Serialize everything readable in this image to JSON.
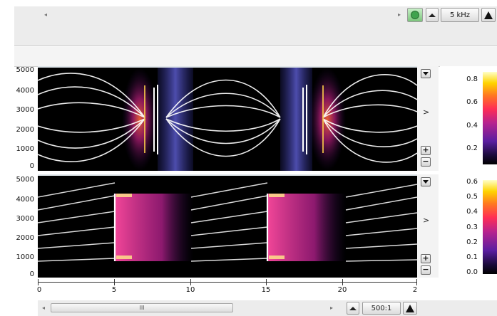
{
  "toolbar": {
    "frequency_label": "5 kHz",
    "icons": [
      "left-arrow-icon",
      "right-arrow-icon",
      "green-globe-icon",
      "mountain-icon",
      "triangle-up-icon"
    ]
  },
  "panel1": {
    "y_ticks": [
      "5000",
      "4000",
      "3000",
      "2000",
      "1000",
      "0"
    ],
    "colorbar_ticks": [
      "0.8",
      "0.6",
      "0.4",
      "0.2"
    ],
    "chevron": ">",
    "plus": "+",
    "minus": "−"
  },
  "panel2": {
    "y_ticks": [
      "5000",
      "4000",
      "3000",
      "2000",
      "1000",
      "0"
    ],
    "colorbar_ticks": [
      "0.6",
      "0.5",
      "0.4",
      "0.3",
      "0.2",
      "0.1",
      "0.0"
    ],
    "chevron": ">",
    "plus": "+",
    "minus": "−"
  },
  "xaxis": {
    "labels": [
      "0",
      "5",
      "10",
      "15",
      "20",
      "2"
    ]
  },
  "bottom": {
    "scroll_grip": "III",
    "zoom_ratio": "500:1"
  },
  "colors": {
    "panel_bg": "#000000",
    "colormap": [
      "#000000",
      "#5a1ea0",
      "#b7238e",
      "#ff2d55",
      "#ff7a1f",
      "#ffd400",
      "#ffffc8"
    ]
  }
}
